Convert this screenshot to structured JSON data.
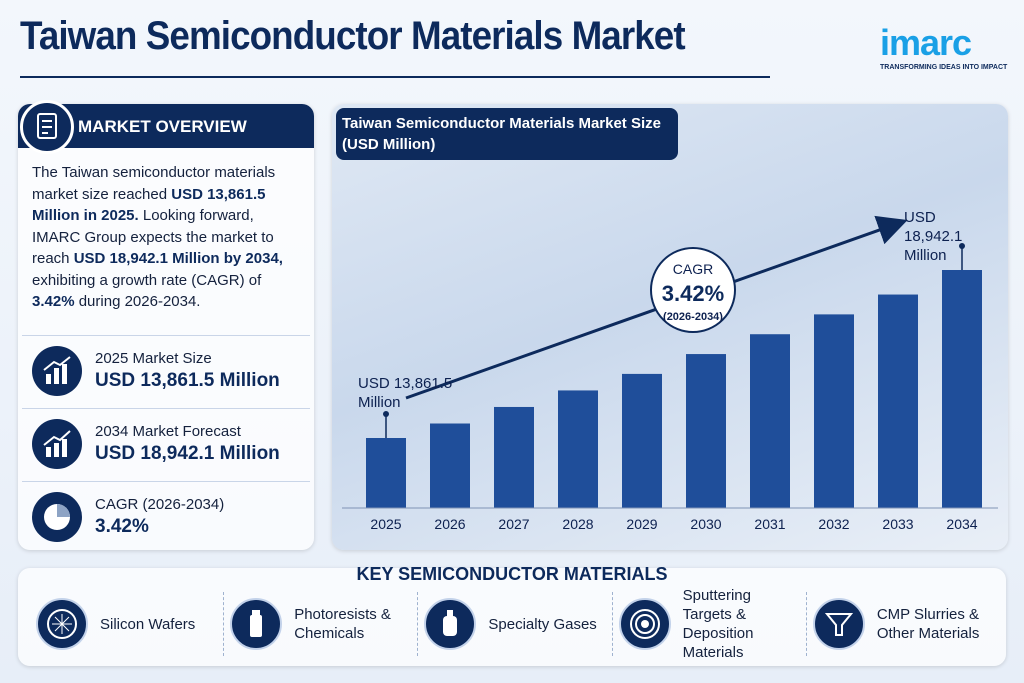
{
  "header": {
    "title": "Taiwan Semiconductor Materials Market",
    "logo": "imarc",
    "tagline": "TRANSFORMING IDEAS INTO IMPACT"
  },
  "overview": {
    "heading": "MARKET OVERVIEW",
    "paragraph": [
      "The Taiwan semiconductor materials market size reached ",
      "USD 13,861.5 Million in 2025.",
      " Looking forward, IMARC Group expects the market to reach ",
      "USD 18,942.1 Million by 2034,",
      " exhibiting a growth rate (CAGR) of ",
      "3.42%",
      " during 2026-2034."
    ],
    "stats": [
      {
        "label": "2025 Market Size",
        "value": "USD 13,861.5 Million"
      },
      {
        "label": "2034 Market Forecast",
        "value": "USD 18,942.1 Million"
      },
      {
        "label": "CAGR (2026-2034)",
        "value": "3.42%"
      }
    ]
  },
  "chart_data": {
    "type": "bar",
    "title": "Taiwan Semiconductor Materials Market Size (USD Million)",
    "categories": [
      "2025",
      "2026",
      "2027",
      "2028",
      "2029",
      "2030",
      "2031",
      "2032",
      "2033",
      "2034"
    ],
    "values": [
      13861.5,
      14300,
      14800,
      15300,
      15800,
      16400,
      17000,
      17600,
      18200,
      18942.1
    ],
    "value_labels": [
      "USD 13,861.5 Million",
      null,
      null,
      null,
      null,
      null,
      null,
      null,
      null,
      "USD 18,942.1 Million"
    ],
    "color": "#1f4e9a",
    "cagr": {
      "label": "CAGR",
      "value": "3.42%",
      "period": "(2026-2034)"
    }
  },
  "materials": {
    "heading": "KEY SEMICONDUCTOR MATERIALS",
    "items": [
      "Silicon Wafers",
      "Photoresists & Chemicals",
      "Specialty Gases",
      "Sputtering Targets & Deposition Materials",
      "CMP Slurries & Other Materials"
    ]
  }
}
